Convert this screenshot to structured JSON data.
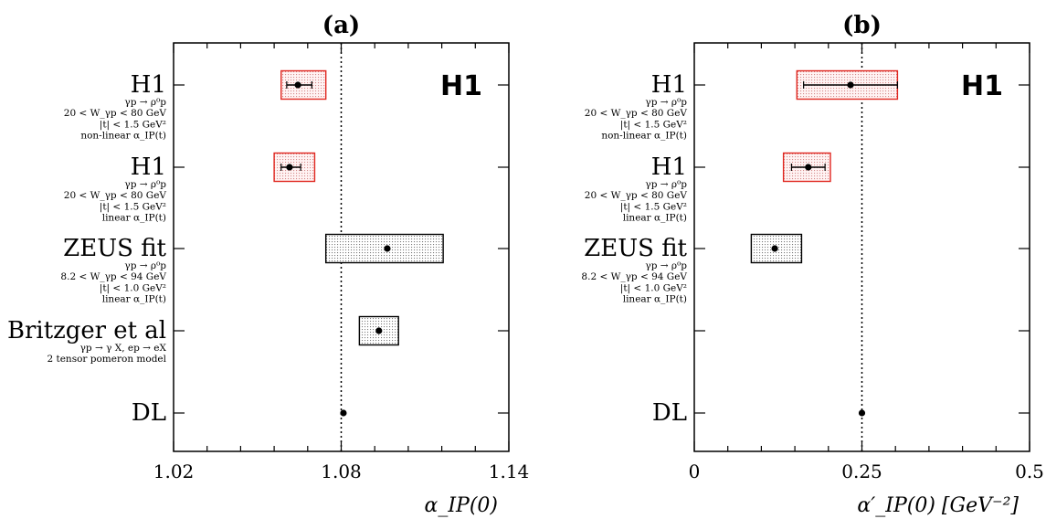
{
  "chart_data": [
    {
      "type": "scatter",
      "panel_title": "(a)",
      "logo": "H1",
      "xlabel": "α_IP(0)",
      "xlim": [
        1.02,
        1.14
      ],
      "xticks": [
        "1.02",
        "1.08",
        "1.14"
      ],
      "reference_line": 1.08,
      "entries": [
        {
          "title": "H1",
          "lines": [
            "γp → ρ⁰p",
            "20 < W_γp < 80 GeV",
            "|t| < 1.5 GeV²",
            "non-linear α_IP(t)"
          ],
          "value": 1.0645,
          "err_lo": 1.0605,
          "err_hi": 1.0695,
          "band": [
            1.0585,
            1.0745
          ],
          "style": "red"
        },
        {
          "title": "H1",
          "lines": [
            "γp → ρ⁰p",
            "20 < W_γp < 80 GeV",
            "|t| < 1.5 GeV²",
            "linear α_IP(t)"
          ],
          "value": 1.0615,
          "err_lo": 1.0585,
          "err_hi": 1.0655,
          "band": [
            1.056,
            1.0705
          ],
          "style": "red"
        },
        {
          "title": "ZEUS fit",
          "lines": [
            "γp → ρ⁰p",
            "8.2 < W_γp < 94 GeV",
            "|t| < 1.0 GeV²",
            "linear α_IP(t)"
          ],
          "value": 1.0965,
          "err_lo": null,
          "err_hi": null,
          "band": [
            1.0745,
            1.1165
          ],
          "style": "black"
        },
        {
          "title": "Britzger et al",
          "lines": [
            "γp → γ X, ep → eX",
            "2 tensor pomeron model"
          ],
          "value": 1.0935,
          "err_lo": null,
          "err_hi": null,
          "band": [
            1.0865,
            1.1005
          ],
          "style": "black"
        },
        {
          "title": "DL",
          "lines": [],
          "value": 1.0808,
          "err_lo": null,
          "err_hi": null,
          "band": null,
          "style": "none"
        }
      ]
    },
    {
      "type": "scatter",
      "panel_title": "(b)",
      "logo": "H1",
      "xlabel": "α′_IP(0)  [GeV⁻²]",
      "xlim": [
        0,
        0.5
      ],
      "xticks": [
        "0",
        "0.25",
        "0.5"
      ],
      "reference_line": 0.25,
      "entries": [
        {
          "title": "H1",
          "lines": [
            "γp → ρ⁰p",
            "20 < W_γp < 80 GeV",
            "|t| < 1.5 GeV²",
            "non-linear α_IP(t)"
          ],
          "value": 0.233,
          "err_lo": 0.163,
          "err_hi": 0.303,
          "band": [
            0.153,
            0.303
          ],
          "style": "red"
        },
        {
          "title": "H1",
          "lines": [
            "γp → ρ⁰p",
            "20 < W_γp < 80 GeV",
            "|t| < 1.5 GeV²",
            "linear α_IP(t)"
          ],
          "value": 0.17,
          "err_lo": 0.145,
          "err_hi": 0.195,
          "band": [
            0.133,
            0.203
          ],
          "style": "red"
        },
        {
          "title": "ZEUS fit",
          "lines": [
            "γp → ρ⁰p",
            "8.2 < W_γp < 94 GeV",
            "|t| < 1.0 GeV²",
            "linear α_IP(t)"
          ],
          "value": 0.12,
          "err_lo": null,
          "err_hi": null,
          "band": [
            0.085,
            0.16
          ],
          "style": "black"
        },
        {
          "title": "DL",
          "lines": [],
          "value": 0.25,
          "err_lo": null,
          "err_hi": null,
          "band": null,
          "style": "none",
          "row": 4
        }
      ]
    }
  ]
}
